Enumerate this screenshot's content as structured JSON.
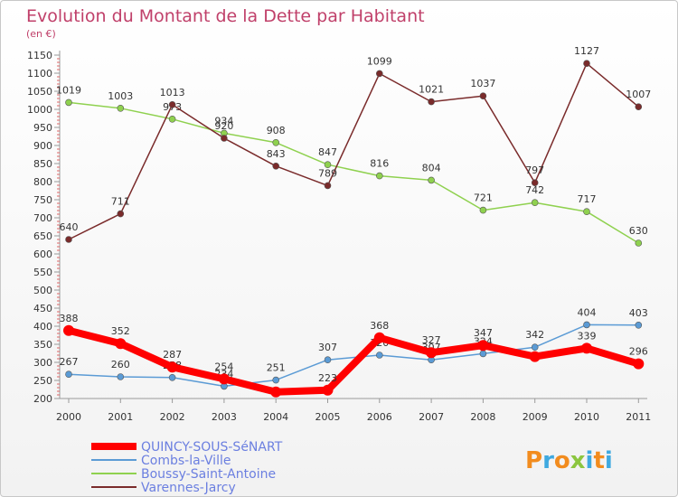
{
  "title": "Evolution du Montant de la Dette par Habitant",
  "unit": "(en €)",
  "logo": "Proxiti",
  "chart_data": {
    "type": "line",
    "x": [
      "2000",
      "2001",
      "2002",
      "2003",
      "2004",
      "2005",
      "2006",
      "2007",
      "2008",
      "2009",
      "2010",
      "2011"
    ],
    "ylim": [
      200,
      1150
    ],
    "yticks": [
      200,
      250,
      300,
      350,
      400,
      450,
      500,
      550,
      600,
      650,
      700,
      750,
      800,
      850,
      900,
      950,
      1000,
      1050,
      1100,
      1150
    ],
    "grid": false,
    "legend_position": "bottom-left",
    "series": [
      {
        "name": "QUINCY-SOUS-SéNART",
        "color": "#ff0000",
        "width": 8,
        "marker": 6,
        "values": [
          388,
          352,
          287,
          254,
          218,
          223,
          368,
          327,
          347,
          316,
          339,
          296
        ],
        "labels": [
          "388",
          "352",
          "287",
          "254",
          "",
          "223",
          "368",
          "327",
          "347",
          "",
          "339",
          "296"
        ]
      },
      {
        "name": "Combs-la-Ville",
        "color": "#5b9bd5",
        "width": 1.5,
        "marker": 3.5,
        "values": [
          267,
          260,
          258,
          234,
          251,
          307,
          320,
          307,
          324,
          342,
          404,
          403
        ],
        "labels": [
          "267",
          "260",
          "258",
          "234",
          "251",
          "307",
          "320",
          "307",
          "324",
          "342",
          "404",
          "403"
        ]
      },
      {
        "name": "Boussy-Saint-Antoine",
        "color": "#8fd14f",
        "width": 1.5,
        "marker": 3.5,
        "values": [
          1019,
          1003,
          973,
          934,
          908,
          847,
          816,
          804,
          721,
          742,
          717,
          630
        ],
        "labels": [
          "1019",
          "1003",
          "973",
          "934",
          "908",
          "847",
          "816",
          "804",
          "721",
          "742",
          "717",
          "630"
        ]
      },
      {
        "name": "Varennes-Jarcy",
        "color": "#7a2b2b",
        "width": 1.5,
        "marker": 3.5,
        "values": [
          640,
          711,
          1013,
          920,
          843,
          789,
          1099,
          1021,
          1037,
          797,
          1127,
          1007
        ],
        "labels": [
          "640",
          "711",
          "1013",
          "920",
          "843",
          "789",
          "1099",
          "1021",
          "1037",
          "797",
          "1127",
          "1007"
        ]
      }
    ]
  }
}
